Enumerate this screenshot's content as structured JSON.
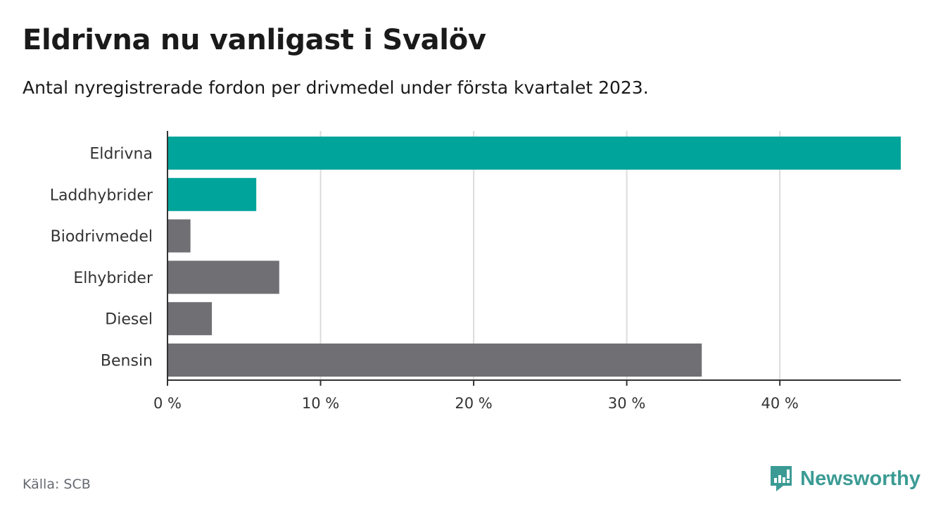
{
  "title": "Eldrivna nu vanligast i Svalöv",
  "subtitle": "Antal nyregistrerade fordon per drivmedel under första kvartalet 2023.",
  "source": "Källa: SCB",
  "brand": "Newsworthy",
  "colors": {
    "highlight": "#00a49a",
    "default": "#6f6f74",
    "grid": "#dcdcdc",
    "axis": "#333333",
    "brand": "#3b9b94"
  },
  "chart_data": {
    "type": "bar",
    "orientation": "horizontal",
    "categories": [
      "Eldrivna",
      "Laddhybrider",
      "Biodrivmedel",
      "Elhybrider",
      "Diesel",
      "Bensin"
    ],
    "values": [
      47.9,
      5.8,
      1.5,
      7.3,
      2.9,
      34.9
    ],
    "highlighted": [
      true,
      true,
      false,
      false,
      false,
      false
    ],
    "xlim": [
      0,
      47.9
    ],
    "xticks": [
      0,
      10,
      20,
      30,
      40
    ],
    "xtick_labels": [
      "0 %",
      "10 %",
      "20 %",
      "30 %",
      "40 %"
    ],
    "grid": true
  }
}
